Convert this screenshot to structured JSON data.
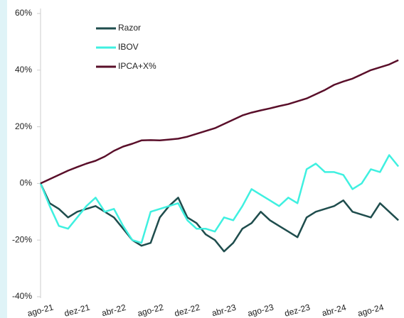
{
  "chart_data": {
    "type": "line",
    "categories": [
      "ago-21",
      null,
      null,
      null,
      "dez-21",
      null,
      null,
      null,
      "abr-22",
      null,
      null,
      null,
      "ago-22",
      null,
      null,
      null,
      "dez-22",
      null,
      null,
      null,
      "abr-23",
      null,
      null,
      null,
      "ago-23",
      null,
      null,
      null,
      "dez-23",
      null,
      null,
      null,
      "abr-24",
      null,
      null,
      null,
      "ago-24",
      null,
      null,
      null
    ],
    "series": [
      {
        "name": "Razor",
        "color": "#1f4d4d",
        "values": [
          0,
          -7,
          -9,
          -12,
          -10,
          -9,
          -8,
          -10,
          -12,
          -16,
          -20,
          -22,
          -21,
          -12,
          -8,
          -5,
          -12,
          -14,
          -18,
          -20,
          -24,
          -21,
          -16,
          -14,
          -10,
          -13,
          -15,
          -17,
          -19,
          -12,
          -10,
          -9,
          -8,
          -6,
          -10,
          -11,
          -12,
          -7,
          -10,
          -13
        ]
      },
      {
        "name": "IBOV",
        "color": "#3ff0e0",
        "values": [
          0,
          -8,
          -15,
          -16,
          -12,
          -8,
          -5,
          -10,
          -9,
          -15,
          -20,
          -21,
          -10,
          -9,
          -8,
          -7,
          -13,
          -16,
          -16,
          -17,
          -12,
          -13,
          -8,
          -2,
          -4,
          -6,
          -8,
          -5,
          -7,
          5,
          7,
          4,
          4,
          3,
          -2,
          0,
          5,
          4,
          10,
          6
        ]
      },
      {
        "name": "IPCA+X%",
        "color": "#5a0f2a",
        "values": [
          0,
          1.5,
          3,
          4.5,
          5.8,
          7,
          8,
          9.5,
          11.5,
          13,
          14,
          15.2,
          15.3,
          15.2,
          15.5,
          15.8,
          16.5,
          17.5,
          18.5,
          19.5,
          21,
          22.5,
          24,
          25,
          25.8,
          26.5,
          27.3,
          28,
          29,
          30,
          31.5,
          33,
          34.8,
          36,
          37,
          38.5,
          40,
          41,
          42,
          43.5
        ]
      }
    ],
    "ylim": [
      -40,
      60
    ],
    "yticks": [
      {
        "value": -40,
        "label": "-40%"
      },
      {
        "value": -20,
        "label": "-20%"
      },
      {
        "value": 0,
        "label": "0%"
      },
      {
        "value": 20,
        "label": "20%"
      },
      {
        "value": 40,
        "label": "40%"
      },
      {
        "value": 60,
        "label": "60%"
      }
    ],
    "legend": "upper left"
  }
}
